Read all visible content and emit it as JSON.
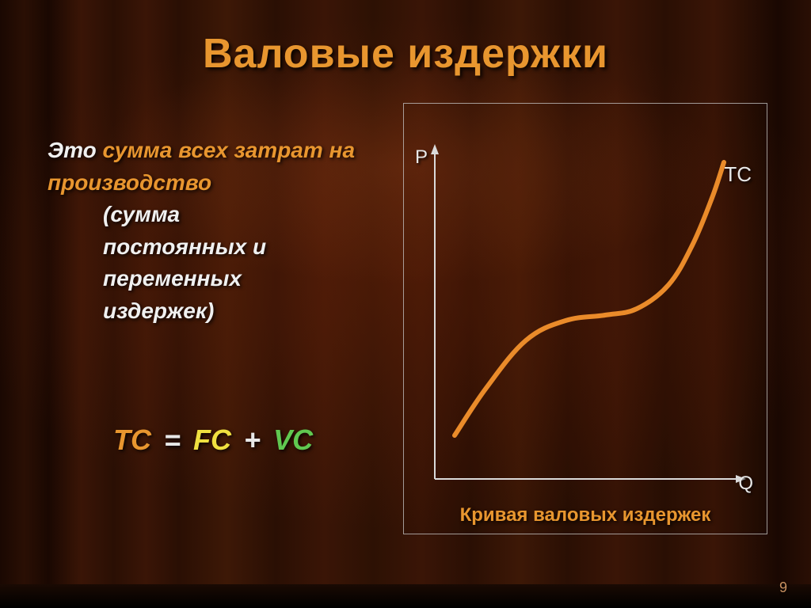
{
  "title": "Валовые издержки",
  "title_color": "#e8962f",
  "definition": {
    "prefix": "Это ",
    "prefix_color": "#f0f0f0",
    "highlight": "сумма всех затрат на производство",
    "highlight_color": "#e8962f",
    "suffix_lines": [
      "(сумма",
      "постоянных и",
      "переменных",
      "издержек)"
    ],
    "suffix_color": "#f0f0f0"
  },
  "formula": {
    "tc": "TC",
    "tc_color": "#e8962f",
    "eq": " = ",
    "eq_color": "#e8e8e8",
    "fc": "FC",
    "fc_color": "#f0e040",
    "plus": " + ",
    "plus_color": "#e8e8e8",
    "vc": "VC",
    "vc_color": "#60c850"
  },
  "chart": {
    "type": "line",
    "y_axis_label": "P",
    "x_axis_label": "Q",
    "curve_label": "TC",
    "caption": "Кривая валовых издержек",
    "caption_color": "#e8962f",
    "axis_color": "#dadada",
    "axis_width": 2,
    "label_color": "#e8e8e8",
    "curve_color": "#ea8b2a",
    "curve_width": 6,
    "curve_points": [
      {
        "x": 30,
        "y": 370
      },
      {
        "x": 70,
        "y": 310
      },
      {
        "x": 120,
        "y": 250
      },
      {
        "x": 170,
        "y": 225
      },
      {
        "x": 220,
        "y": 218
      },
      {
        "x": 260,
        "y": 210
      },
      {
        "x": 300,
        "y": 180
      },
      {
        "x": 330,
        "y": 130
      },
      {
        "x": 355,
        "y": 70
      },
      {
        "x": 370,
        "y": 25
      }
    ],
    "xlim": [
      0,
      400
    ],
    "ylim": [
      0,
      430
    ],
    "arrow_size": 10
  },
  "page_number": "9",
  "page_number_color": "#c89060"
}
